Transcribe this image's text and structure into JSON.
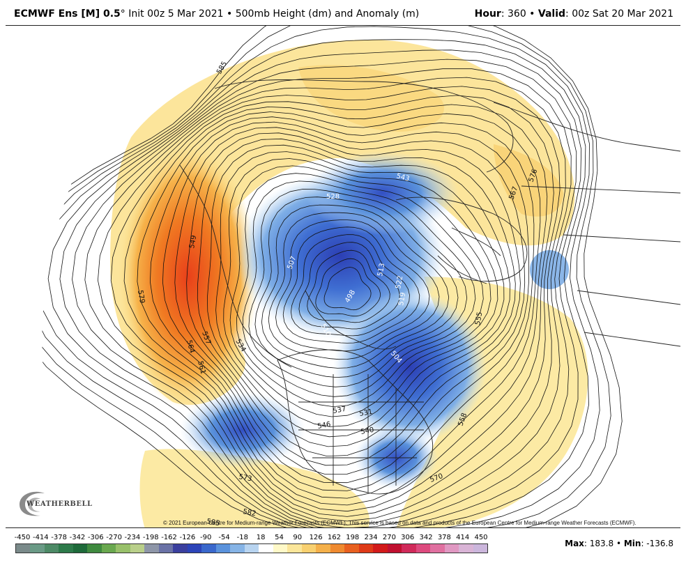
{
  "header": {
    "model_bold": "ECMWF Ens [M] 0.5",
    "degree": "°",
    "init_text": " Init 00z 5 Mar 2021",
    "bullet": " • ",
    "field_text": "500mb Height (dm) and Anomaly (m)",
    "hour_label": "Hour",
    "hour_value": ": 360",
    "valid_label": "Valid",
    "valid_value": ": 00z Sat 20 Mar 2021"
  },
  "map": {
    "contour_labels": [
      "585",
      "549",
      "579",
      "564",
      "557",
      "561",
      "534",
      "528",
      "543",
      "507",
      "498",
      "510",
      "513",
      "522",
      "519",
      "504",
      "537",
      "531",
      "546",
      "540",
      "573",
      "582",
      "585",
      "570",
      "558",
      "555",
      "567",
      "576"
    ],
    "colors": {
      "strong_positive": "#e8401a",
      "positive": "#f39a2c",
      "weak_positive": "#f8d77c",
      "slight_positive": "#fdf2b4",
      "neutral": "#ffffff",
      "slight_negative": "#b8d8f2",
      "negative": "#5a9be0",
      "strong_negative": "#2c4bbf"
    }
  },
  "copyright": "© 2021 European Centre for Medium-range Weather Forecasts (ECMWF). This service is based on data and products of the European Centre for Medium-range Weather Forecasts (ECMWF).",
  "logo": {
    "text": "WEATHERBELL",
    "icon": "swirl-logo-icon"
  },
  "legend": {
    "labels": [
      "-450",
      "-414",
      "-378",
      "-342",
      "-306",
      "-270",
      "-234",
      "-198",
      "-162",
      "-126",
      "-90",
      "-54",
      "-18",
      "18",
      "54",
      "90",
      "126",
      "162",
      "198",
      "234",
      "270",
      "306",
      "342",
      "378",
      "414",
      "450"
    ],
    "colors": [
      "#7a8a8a",
      "#6a9a86",
      "#4d8a66",
      "#2d7a4a",
      "#1e6a3a",
      "#3f8a3f",
      "#6aa84f",
      "#98c06a",
      "#b9cf8a",
      "#8e96a8",
      "#6a72a6",
      "#3a3f9e",
      "#2c44b8",
      "#3a68cc",
      "#5a92dc",
      "#86b4e6",
      "#b8d4f0",
      "#ffffff",
      "#fff9c8",
      "#fbe69a",
      "#f8d070",
      "#f4b04a",
      "#ef8a30",
      "#e86020",
      "#de3a18",
      "#d21a1a",
      "#c01030",
      "#d02a5a",
      "#dd4a7e",
      "#e070a0",
      "#e098c2",
      "#d9b4d6",
      "#cbb6dc"
    ],
    "max_label": "Max",
    "max_value": ": 183.8",
    "sep": " • ",
    "min_label": "Min",
    "min_value": ": -136.8"
  }
}
